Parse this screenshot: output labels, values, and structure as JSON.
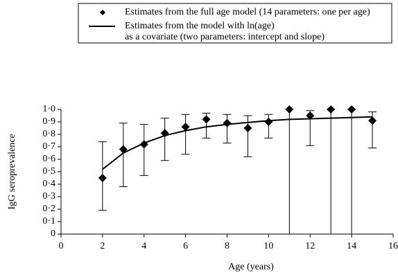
{
  "chart_data": {
    "type": "scatter",
    "xlabel": "Age (years)",
    "ylabel": "IgG seroprevalence",
    "xlim": [
      0,
      16
    ],
    "ylim": [
      0,
      1.0
    ],
    "xticks": [
      0,
      2,
      4,
      6,
      8,
      10,
      12,
      14,
      16
    ],
    "yticks": [
      0,
      {
        "value": 0.1,
        "label": "0·1"
      },
      {
        "value": 0.2,
        "label": "0·2"
      },
      {
        "value": 0.3,
        "label": "0·3"
      },
      {
        "value": 0.4,
        "label": "0·4"
      },
      {
        "value": 0.5,
        "label": "0·5"
      },
      {
        "value": 0.6,
        "label": "0·6"
      },
      {
        "value": 0.7,
        "label": "0·7"
      },
      {
        "value": 0.8,
        "label": "0·8"
      },
      {
        "value": 0.9,
        "label": "0·9"
      },
      {
        "value": 1.0,
        "label": "1·0"
      }
    ],
    "legend": "top",
    "series": [
      {
        "name": [
          "Estimates from the full age model (14 parameters: one per age)"
        ],
        "color": "#000000",
        "marker": "diamond",
        "x": [
          2,
          3,
          4,
          5,
          6,
          7,
          8,
          9,
          10,
          11,
          12,
          13,
          14,
          15
        ],
        "values": [
          0.45,
          0.68,
          0.72,
          0.81,
          0.86,
          0.92,
          0.89,
          0.85,
          0.9,
          1.0,
          0.95,
          1.0,
          1.0,
          0.91
        ],
        "lower": [
          0.19,
          0.38,
          0.47,
          0.59,
          0.64,
          0.77,
          0.73,
          0.62,
          0.77,
          0,
          0.71,
          0,
          0,
          0.69
        ],
        "upper": [
          0.74,
          0.89,
          0.88,
          0.93,
          0.96,
          0.97,
          0.96,
          0.95,
          0.96,
          1.0,
          0.99,
          1.0,
          1.0,
          0.98
        ]
      },
      {
        "name": [
          "Estimates from the model with ln(age)",
          "as a covariate (two parameters: intercept and slope)"
        ],
        "color": "#000000",
        "marker": "line",
        "x": [
          2,
          3,
          4,
          5,
          6,
          7,
          8,
          9,
          10,
          11,
          12,
          13,
          14,
          15
        ],
        "values": [
          0.52,
          0.65,
          0.73,
          0.79,
          0.83,
          0.86,
          0.88,
          0.895,
          0.91,
          0.92,
          0.925,
          0.93,
          0.935,
          0.94
        ]
      }
    ]
  }
}
